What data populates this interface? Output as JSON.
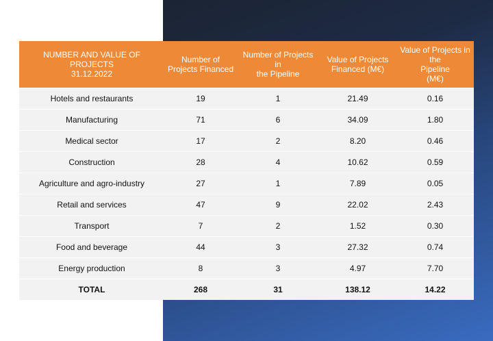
{
  "header": {
    "col0_line1": "NUMBER AND VALUE OF PROJECTS",
    "col0_line2": "31.12.2022",
    "col1_line1": "Number of",
    "col1_line2": "Projects Financed",
    "col2_line1": "Number of Projects in",
    "col2_line2": "the Pipeline",
    "col3_line1": "Value of Projects",
    "col3_line2": "Financed (M€)",
    "col4_line1": "Value of Projects in the",
    "col4_line2": "Pipeline",
    "col4_line3": "(M€)"
  },
  "rows": [
    {
      "sector": "Hotels and restaurants",
      "financed": "19",
      "pipeline": "1",
      "value_financed": "21.49",
      "value_pipeline": "0.16"
    },
    {
      "sector": "Manufacturing",
      "financed": "71",
      "pipeline": "6",
      "value_financed": "34.09",
      "value_pipeline": "1.80"
    },
    {
      "sector": "Medical sector",
      "financed": "17",
      "pipeline": "2",
      "value_financed": "8.20",
      "value_pipeline": "0.46"
    },
    {
      "sector": "Construction",
      "financed": "28",
      "pipeline": "4",
      "value_financed": "10.62",
      "value_pipeline": "0.59"
    },
    {
      "sector": "Agriculture and agro-industry",
      "financed": "27",
      "pipeline": "1",
      "value_financed": "7.89",
      "value_pipeline": "0.05"
    },
    {
      "sector": "Retail and services",
      "financed": "47",
      "pipeline": "9",
      "value_financed": "22.02",
      "value_pipeline": "2.43"
    },
    {
      "sector": "Transport",
      "financed": "7",
      "pipeline": "2",
      "value_financed": "1.52",
      "value_pipeline": "0.30"
    },
    {
      "sector": "Food and beverage",
      "financed": "44",
      "pipeline": "3",
      "value_financed": "27.32",
      "value_pipeline": "0.74"
    },
    {
      "sector": "Energy production",
      "financed": "8",
      "pipeline": "3",
      "value_financed": "4.97",
      "value_pipeline": "7.70"
    }
  ],
  "total": {
    "label": "TOTAL",
    "financed": "268",
    "pipeline": "31",
    "value_financed": "138.12",
    "value_pipeline": "14.22"
  },
  "colors": {
    "header_bg": "#ee8a37",
    "row_bg": "#f2f2f2",
    "panel_dark": "#1b2433",
    "panel_light": "#3a6bc0"
  }
}
